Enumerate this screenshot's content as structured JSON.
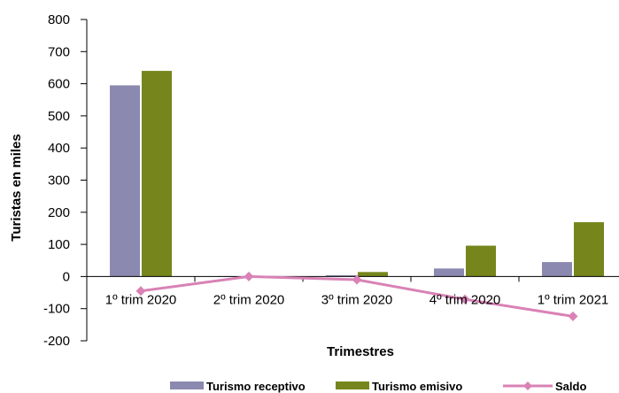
{
  "chart_data": {
    "type": "bar",
    "categories": [
      "1º trim 2020",
      "2º trim 2020",
      "3º trim 2020",
      "4º trim 2020",
      "1º trim 2021"
    ],
    "series": [
      {
        "name": "Turismo receptivo",
        "type": "bar",
        "color": "#8b89b0",
        "values": [
          595,
          1,
          4,
          25,
          45
        ]
      },
      {
        "name": "Turismo emisivo",
        "type": "bar",
        "color": "#76861c",
        "values": [
          640,
          1,
          14,
          96,
          169
        ]
      },
      {
        "name": "Saldo",
        "type": "line",
        "color": "#d982b6",
        "values": [
          -45,
          0,
          -10,
          -71,
          -124
        ]
      }
    ],
    "title": "",
    "xlabel": "Trimestres",
    "ylabel": "Turistas en miles",
    "ylim": [
      -200,
      800
    ],
    "yticks": [
      -200,
      -100,
      0,
      100,
      200,
      300,
      400,
      500,
      600,
      700,
      800
    ],
    "grid": false,
    "legend_position": "bottom"
  }
}
